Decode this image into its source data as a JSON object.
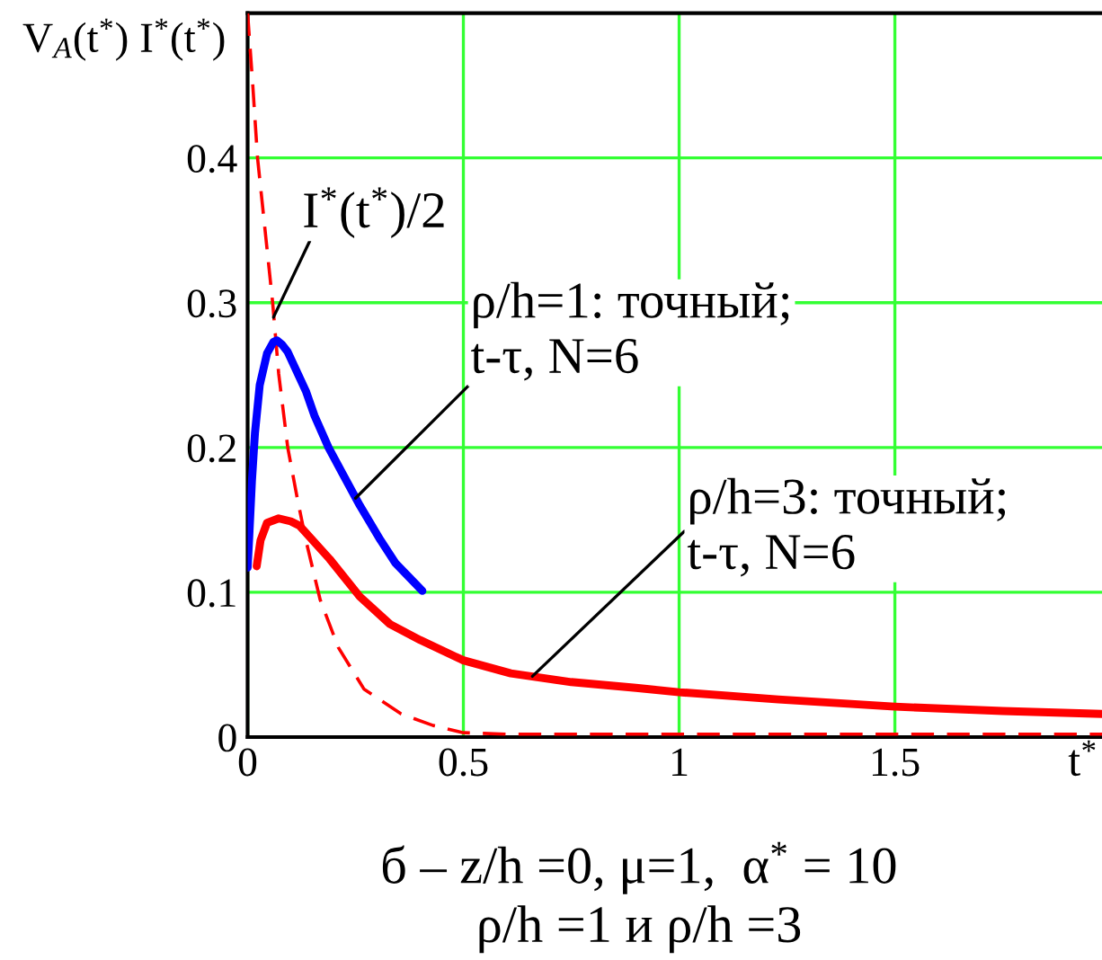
{
  "chart_data": {
    "type": "line",
    "ylabel": "V$_{A}$(t$^{*}$) I$^{*}$(t$^{*}$)",
    "xlabel": "t$^{*}$",
    "xlim": [
      0,
      1.98
    ],
    "xticks": [
      0,
      0.5,
      1,
      1.5
    ],
    "ylim": [
      0,
      0.5
    ],
    "yticks": [
      0,
      0.1,
      0.2,
      0.3,
      0.4
    ],
    "grid": true,
    "series": [
      {
        "color": "#ff0000",
        "line_style": "dashed",
        "x": [
          0,
          0.012,
          0.023,
          0.044,
          0.058,
          0.072,
          0.093,
          0.115,
          0.135,
          0.168,
          0.21,
          0.27,
          0.356,
          0.43,
          0.5,
          0.6,
          0.8,
          1.0,
          1.5,
          1.98
        ],
        "values": [
          0.5,
          0.45,
          0.4,
          0.34,
          0.3,
          0.251,
          0.2,
          0.165,
          0.136,
          0.095,
          0.062,
          0.033,
          0.016,
          0.008,
          0.003,
          0.002,
          0.002,
          0.002,
          0.002,
          0.002
        ]
      },
      {
        "color": "#0000ff",
        "line_style": "solid",
        "x": [
          0,
          0.004,
          0.01,
          0.017,
          0.028,
          0.045,
          0.06,
          0.068,
          0.08,
          0.093,
          0.107,
          0.135,
          0.155,
          0.1875,
          0.22,
          0.26,
          0.308,
          0.343,
          0.405
        ],
        "values": [
          0.117,
          0.14,
          0.177,
          0.21,
          0.243,
          0.265,
          0.273,
          0.274,
          0.271,
          0.266,
          0.257,
          0.239,
          0.222,
          0.2,
          0.182,
          0.16,
          0.136,
          0.12,
          0.101
        ]
      },
      {
        "color": "#ff0000",
        "line_style": "solid",
        "x": [
          0.021,
          0.03,
          0.045,
          0.072,
          0.1,
          0.12,
          0.19,
          0.26,
          0.33,
          0.4,
          0.5,
          0.61,
          0.75,
          0.9,
          1.0,
          1.23,
          1.5,
          1.75,
          1.98
        ],
        "values": [
          0.118,
          0.136,
          0.148,
          0.151,
          0.149,
          0.146,
          0.123,
          0.097,
          0.078,
          0.067,
          0.053,
          0.044,
          0.038,
          0.034,
          0.031,
          0.026,
          0.021,
          0.018,
          0.016
        ]
      }
    ],
    "annotations": [
      {
        "text": "I$^{*}$(t$^{*}$)/2",
        "x": 0.06,
        "y": 0.29
      },
      {
        "text": "ρ/h=1: точный;\nt-τ, N=6",
        "x": 0.25,
        "y": 0.165
      },
      {
        "text": "ρ/h=3: точный;\nt-τ, N=6",
        "x": 0.66,
        "y": 0.042
      },
      "б – z/h =0, μ=1,  α$^{*}$ = 10",
      "ρ/h =1 и ρ/h =3"
    ]
  }
}
